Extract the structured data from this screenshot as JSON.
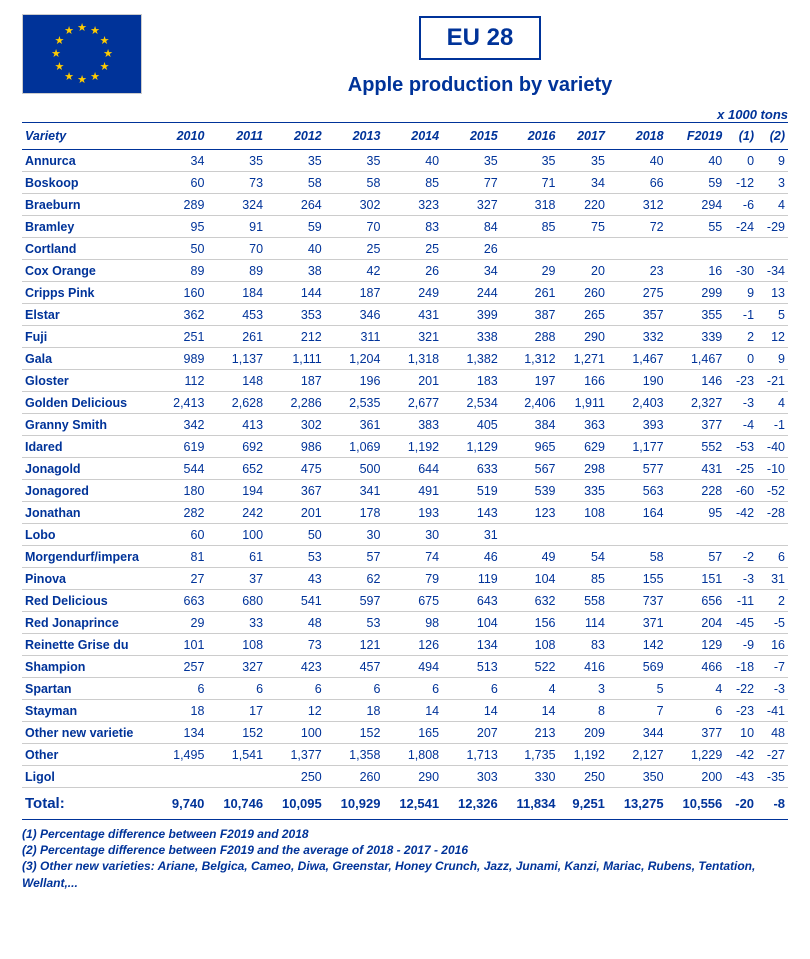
{
  "colors": {
    "brand": "#003399",
    "star": "#ffcc00",
    "row_border": "#cccccc",
    "page_bg": "#ffffff"
  },
  "typography": {
    "font_family": "Arial, Helvetica, sans-serif",
    "title_fontsize_pt": 18,
    "subtitle_fontsize_pt": 15,
    "table_fontsize_pt": 9.5
  },
  "header": {
    "title": "EU 28",
    "subtitle": "Apple production by variety"
  },
  "unit_label": "x 1000 tons",
  "table": {
    "type": "table",
    "col_headers": [
      "Variety",
      "2010",
      "2011",
      "2012",
      "2013",
      "2014",
      "2015",
      "2016",
      "2017",
      "2018",
      "F2019",
      "(1)",
      "(2)"
    ],
    "rows": [
      {
        "variety": "Annurca",
        "cells": [
          "34",
          "35",
          "35",
          "35",
          "40",
          "35",
          "35",
          "35",
          "40",
          "40",
          "0",
          "9"
        ]
      },
      {
        "variety": "Boskoop",
        "cells": [
          "60",
          "73",
          "58",
          "58",
          "85",
          "77",
          "71",
          "34",
          "66",
          "59",
          "-12",
          "3"
        ]
      },
      {
        "variety": "Braeburn",
        "cells": [
          "289",
          "324",
          "264",
          "302",
          "323",
          "327",
          "318",
          "220",
          "312",
          "294",
          "-6",
          "4"
        ]
      },
      {
        "variety": "Bramley",
        "cells": [
          "95",
          "91",
          "59",
          "70",
          "83",
          "84",
          "85",
          "75",
          "72",
          "55",
          "-24",
          "-29"
        ]
      },
      {
        "variety": "Cortland",
        "cells": [
          "50",
          "70",
          "40",
          "25",
          "25",
          "26",
          "",
          "",
          "",
          "",
          "",
          ""
        ]
      },
      {
        "variety": "Cox Orange",
        "cells": [
          "89",
          "89",
          "38",
          "42",
          "26",
          "34",
          "29",
          "20",
          "23",
          "16",
          "-30",
          "-34"
        ]
      },
      {
        "variety": "Cripps Pink",
        "cells": [
          "160",
          "184",
          "144",
          "187",
          "249",
          "244",
          "261",
          "260",
          "275",
          "299",
          "9",
          "13"
        ]
      },
      {
        "variety": "Elstar",
        "cells": [
          "362",
          "453",
          "353",
          "346",
          "431",
          "399",
          "387",
          "265",
          "357",
          "355",
          "-1",
          "5"
        ]
      },
      {
        "variety": "Fuji",
        "cells": [
          "251",
          "261",
          "212",
          "311",
          "321",
          "338",
          "288",
          "290",
          "332",
          "339",
          "2",
          "12"
        ]
      },
      {
        "variety": "Gala",
        "cells": [
          "989",
          "1,137",
          "1,111",
          "1,204",
          "1,318",
          "1,382",
          "1,312",
          "1,271",
          "1,467",
          "1,467",
          "0",
          "9"
        ]
      },
      {
        "variety": "Gloster",
        "cells": [
          "112",
          "148",
          "187",
          "196",
          "201",
          "183",
          "197",
          "166",
          "190",
          "146",
          "-23",
          "-21"
        ]
      },
      {
        "variety": "Golden Delicious",
        "cells": [
          "2,413",
          "2,628",
          "2,286",
          "2,535",
          "2,677",
          "2,534",
          "2,406",
          "1,911",
          "2,403",
          "2,327",
          "-3",
          "4"
        ]
      },
      {
        "variety": "Granny Smith",
        "cells": [
          "342",
          "413",
          "302",
          "361",
          "383",
          "405",
          "384",
          "363",
          "393",
          "377",
          "-4",
          "-1"
        ]
      },
      {
        "variety": "Idared",
        "cells": [
          "619",
          "692",
          "986",
          "1,069",
          "1,192",
          "1,129",
          "965",
          "629",
          "1,177",
          "552",
          "-53",
          "-40"
        ]
      },
      {
        "variety": "Jonagold",
        "cells": [
          "544",
          "652",
          "475",
          "500",
          "644",
          "633",
          "567",
          "298",
          "577",
          "431",
          "-25",
          "-10"
        ]
      },
      {
        "variety": "Jonagored",
        "cells": [
          "180",
          "194",
          "367",
          "341",
          "491",
          "519",
          "539",
          "335",
          "563",
          "228",
          "-60",
          "-52"
        ]
      },
      {
        "variety": "Jonathan",
        "cells": [
          "282",
          "242",
          "201",
          "178",
          "193",
          "143",
          "123",
          "108",
          "164",
          "95",
          "-42",
          "-28"
        ]
      },
      {
        "variety": "Lobo",
        "cells": [
          "60",
          "100",
          "50",
          "30",
          "30",
          "31",
          "",
          "",
          "",
          "",
          "",
          ""
        ]
      },
      {
        "variety": "Morgendurf/impera",
        "cells": [
          "81",
          "61",
          "53",
          "57",
          "74",
          "46",
          "49",
          "54",
          "58",
          "57",
          "-2",
          "6"
        ]
      },
      {
        "variety": "Pinova",
        "cells": [
          "27",
          "37",
          "43",
          "62",
          "79",
          "119",
          "104",
          "85",
          "155",
          "151",
          "-3",
          "31"
        ]
      },
      {
        "variety": "Red Delicious",
        "cells": [
          "663",
          "680",
          "541",
          "597",
          "675",
          "643",
          "632",
          "558",
          "737",
          "656",
          "-11",
          "2"
        ]
      },
      {
        "variety": "Red Jonaprince",
        "cells": [
          "29",
          "33",
          "48",
          "53",
          "98",
          "104",
          "156",
          "114",
          "371",
          "204",
          "-45",
          "-5"
        ]
      },
      {
        "variety": "Reinette Grise du",
        "cells": [
          "101",
          "108",
          "73",
          "121",
          "126",
          "134",
          "108",
          "83",
          "142",
          "129",
          "-9",
          "16"
        ]
      },
      {
        "variety": "Shampion",
        "cells": [
          "257",
          "327",
          "423",
          "457",
          "494",
          "513",
          "522",
          "416",
          "569",
          "466",
          "-18",
          "-7"
        ]
      },
      {
        "variety": "Spartan",
        "cells": [
          "6",
          "6",
          "6",
          "6",
          "6",
          "6",
          "4",
          "3",
          "5",
          "4",
          "-22",
          "-3"
        ]
      },
      {
        "variety": "Stayman",
        "cells": [
          "18",
          "17",
          "12",
          "18",
          "14",
          "14",
          "14",
          "8",
          "7",
          "6",
          "-23",
          "-41"
        ]
      },
      {
        "variety": "Other new varietie",
        "cells": [
          "134",
          "152",
          "100",
          "152",
          "165",
          "207",
          "213",
          "209",
          "344",
          "377",
          "10",
          "48"
        ]
      },
      {
        "variety": "Other",
        "cells": [
          "1,495",
          "1,541",
          "1,377",
          "1,358",
          "1,808",
          "1,713",
          "1,735",
          "1,192",
          "2,127",
          "1,229",
          "-42",
          "-27"
        ]
      },
      {
        "variety": "Ligol",
        "cells": [
          "",
          "",
          "250",
          "260",
          "290",
          "303",
          "330",
          "250",
          "350",
          "200",
          "-43",
          "-35"
        ]
      }
    ],
    "total": {
      "label": "Total:",
      "cells": [
        "9,740",
        "10,746",
        "10,095",
        "10,929",
        "12,541",
        "12,326",
        "11,834",
        "9,251",
        "13,275",
        "10,556",
        "-20",
        "-8"
      ]
    }
  },
  "notes": [
    "(1) Percentage difference between F2019 and 2018",
    "(2) Percentage difference between F2019 and the average of 2018 - 2017 - 2016",
    "(3) Other new varieties: Ariane, Belgica, Cameo, Diwa, Greenstar, Honey Crunch, Jazz, Junami, Kanzi, Mariac, Rubens, Tentation, Wellant,..."
  ]
}
